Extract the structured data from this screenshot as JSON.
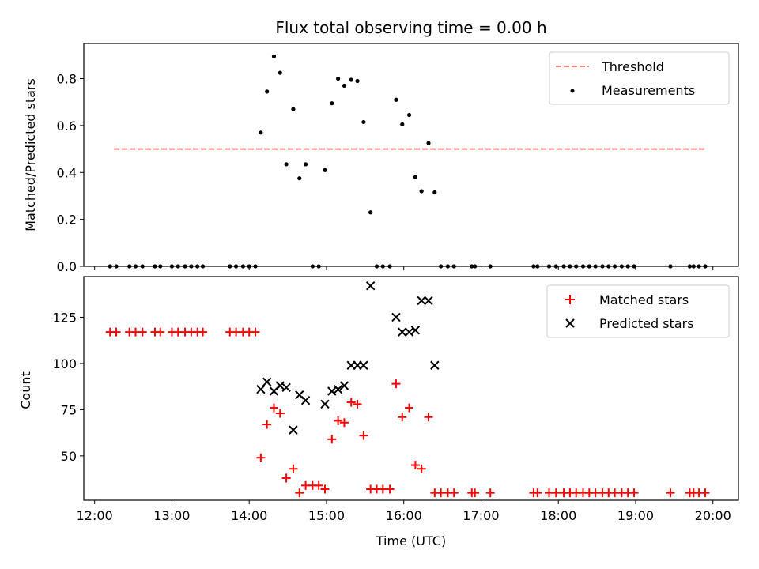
{
  "chart_data": {
    "type": "scatter",
    "title": "Flux total observing time = 0.00 h",
    "xlabel": "Time (UTC)",
    "x_tick_labels": [
      "12:00",
      "13:00",
      "14:00",
      "15:00",
      "16:00",
      "17:00",
      "18:00",
      "19:00",
      "20:00"
    ],
    "x_ticks_hours": [
      12,
      13,
      14,
      15,
      16,
      17,
      18,
      19,
      20
    ],
    "xlim_hours": [
      11.86,
      20.33
    ],
    "panels": [
      {
        "ylabel": "Matched/Predicted stars",
        "ylim": [
          0,
          0.95
        ],
        "y_ticks": [
          0.0,
          0.2,
          0.4,
          0.6,
          0.8
        ],
        "y_tick_labels": [
          "0.0",
          "0.2",
          "0.4",
          "0.6",
          "0.8"
        ],
        "legend_position": "top-right",
        "threshold": {
          "name": "Threshold",
          "value": 0.5,
          "x_range_hours": [
            12.25,
            19.92
          ],
          "color": "#ff7f7f"
        },
        "series": [
          {
            "name": "Measurements",
            "color": "#000000",
            "x_hours": [
              12.2,
              12.28,
              12.45,
              12.53,
              12.62,
              12.78,
              12.85,
              13.0,
              13.08,
              13.17,
              13.25,
              13.33,
              13.4,
              13.75,
              13.83,
              13.92,
              14.0,
              14.08,
              14.15,
              14.23,
              14.32,
              14.4,
              14.48,
              14.57,
              14.65,
              14.73,
              14.82,
              14.9,
              14.98,
              15.07,
              15.15,
              15.23,
              15.32,
              15.4,
              15.48,
              15.57,
              15.65,
              15.73,
              15.82,
              15.9,
              15.98,
              16.07,
              16.15,
              16.23,
              16.32,
              16.4,
              16.48,
              16.57,
              16.65,
              16.88,
              16.92,
              17.12,
              17.68,
              17.73,
              17.88,
              17.97,
              18.07,
              18.15,
              18.23,
              18.32,
              18.4,
              18.48,
              18.57,
              18.65,
              18.73,
              18.82,
              18.9,
              18.98,
              19.45,
              19.7,
              19.75,
              19.82,
              19.9
            ],
            "y": [
              0,
              0,
              0,
              0,
              0,
              0,
              0,
              0,
              0,
              0,
              0,
              0,
              0,
              0,
              0,
              0,
              0,
              0,
              0.57,
              0.745,
              0.895,
              0.825,
              0.435,
              0.67,
              0.375,
              0.435,
              0,
              0,
              0.41,
              0.695,
              0.8,
              0.77,
              0.795,
              0.79,
              0.615,
              0.23,
              0,
              0,
              0,
              0.71,
              0.605,
              0.645,
              0.38,
              0.32,
              0.525,
              0.315,
              0,
              0,
              0,
              0,
              0,
              0,
              0,
              0,
              0,
              0,
              0,
              0,
              0,
              0,
              0,
              0,
              0,
              0,
              0,
              0,
              0,
              0,
              0,
              0,
              0,
              0,
              0
            ]
          }
        ]
      },
      {
        "ylabel": "Count",
        "ylim": [
          26,
          147
        ],
        "y_ticks": [
          50,
          75,
          100,
          125
        ],
        "y_tick_labels": [
          "50",
          "75",
          "100",
          "125"
        ],
        "legend_position": "top-right",
        "series": [
          {
            "name": "Matched stars",
            "marker": "plus",
            "color": "#ff0000",
            "x_hours": [
              12.2,
              12.28,
              12.45,
              12.53,
              12.62,
              12.78,
              12.85,
              13.0,
              13.08,
              13.17,
              13.25,
              13.33,
              13.4,
              13.75,
              13.83,
              13.92,
              14.0,
              14.08,
              14.15,
              14.23,
              14.32,
              14.4,
              14.48,
              14.57,
              14.65,
              14.73,
              14.82,
              14.9,
              14.98,
              15.07,
              15.15,
              15.23,
              15.32,
              15.4,
              15.48,
              15.57,
              15.65,
              15.73,
              15.82,
              15.9,
              15.98,
              16.07,
              16.15,
              16.23,
              16.32,
              16.4,
              16.48,
              16.57,
              16.65,
              16.88,
              16.92,
              17.12,
              17.68,
              17.73,
              17.88,
              17.97,
              18.07,
              18.15,
              18.23,
              18.32,
              18.4,
              18.48,
              18.57,
              18.65,
              18.73,
              18.82,
              18.9,
              18.98,
              19.45,
              19.7,
              19.75,
              19.82,
              19.9
            ],
            "y": [
              117,
              117,
              117,
              117,
              117,
              117,
              117,
              117,
              117,
              117,
              117,
              117,
              117,
              117,
              117,
              117,
              117,
              117,
              49,
              67,
              76,
              73,
              38,
              43,
              30,
              34,
              34,
              34,
              32,
              59,
              69,
              68,
              79,
              78,
              61,
              32,
              32,
              32,
              32,
              89,
              71,
              76,
              45,
              43,
              71,
              30,
              30,
              30,
              30,
              30,
              30,
              30,
              30,
              30,
              30,
              30,
              30,
              30,
              30,
              30,
              30,
              30,
              30,
              30,
              30,
              30,
              30,
              30,
              30,
              30,
              30,
              30,
              30
            ]
          },
          {
            "name": "Predicted stars",
            "marker": "x",
            "color": "#000000",
            "x_hours": [
              14.15,
              14.23,
              14.32,
              14.4,
              14.48,
              14.57,
              14.65,
              14.73,
              14.98,
              15.07,
              15.15,
              15.23,
              15.32,
              15.4,
              15.48,
              15.57,
              15.9,
              15.98,
              16.07,
              16.15,
              16.23,
              16.32,
              16.4
            ],
            "y": [
              86,
              90,
              85,
              88,
              87,
              64,
              83,
              80,
              78,
              85,
              86,
              88,
              99,
              99,
              99,
              142,
              125,
              117,
              117,
              118,
              134,
              134,
              99
            ]
          }
        ]
      }
    ]
  }
}
